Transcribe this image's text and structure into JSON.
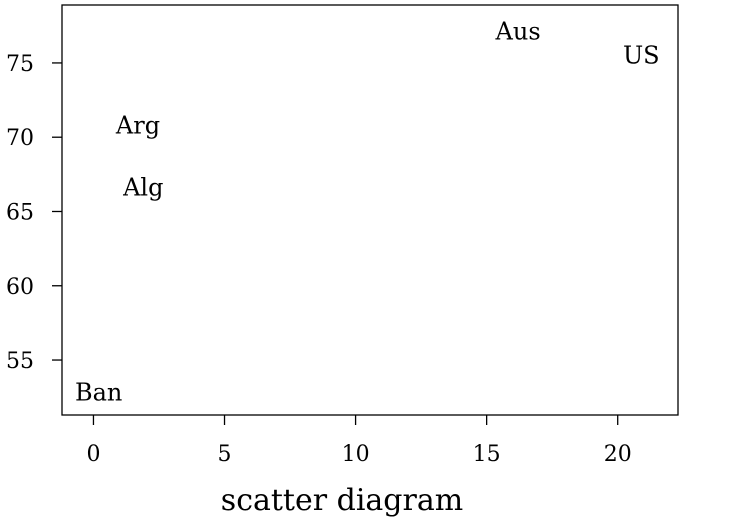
{
  "chart_data": {
    "type": "scatter",
    "title": "",
    "xlabel": "scatter diagram",
    "ylabel": "",
    "xlim": [
      -1.2,
      22.3
    ],
    "ylim": [
      51.3,
      78.9
    ],
    "xticks": [
      0,
      5,
      10,
      15,
      20
    ],
    "yticks": [
      55,
      60,
      65,
      70,
      75
    ],
    "grid": false,
    "legend": "none",
    "marker": "text-label",
    "points": [
      {
        "label": "Aus",
        "x": 16.2,
        "y": 77.1
      },
      {
        "label": "US",
        "x": 20.9,
        "y": 75.5
      },
      {
        "label": "Arg",
        "x": 1.7,
        "y": 70.8
      },
      {
        "label": "Alg",
        "x": 1.9,
        "y": 66.6
      },
      {
        "label": "Ban",
        "x": 0.2,
        "y": 52.8
      }
    ],
    "colors": {
      "axis": "#000000",
      "text": "#000000",
      "background": "#ffffff"
    }
  }
}
